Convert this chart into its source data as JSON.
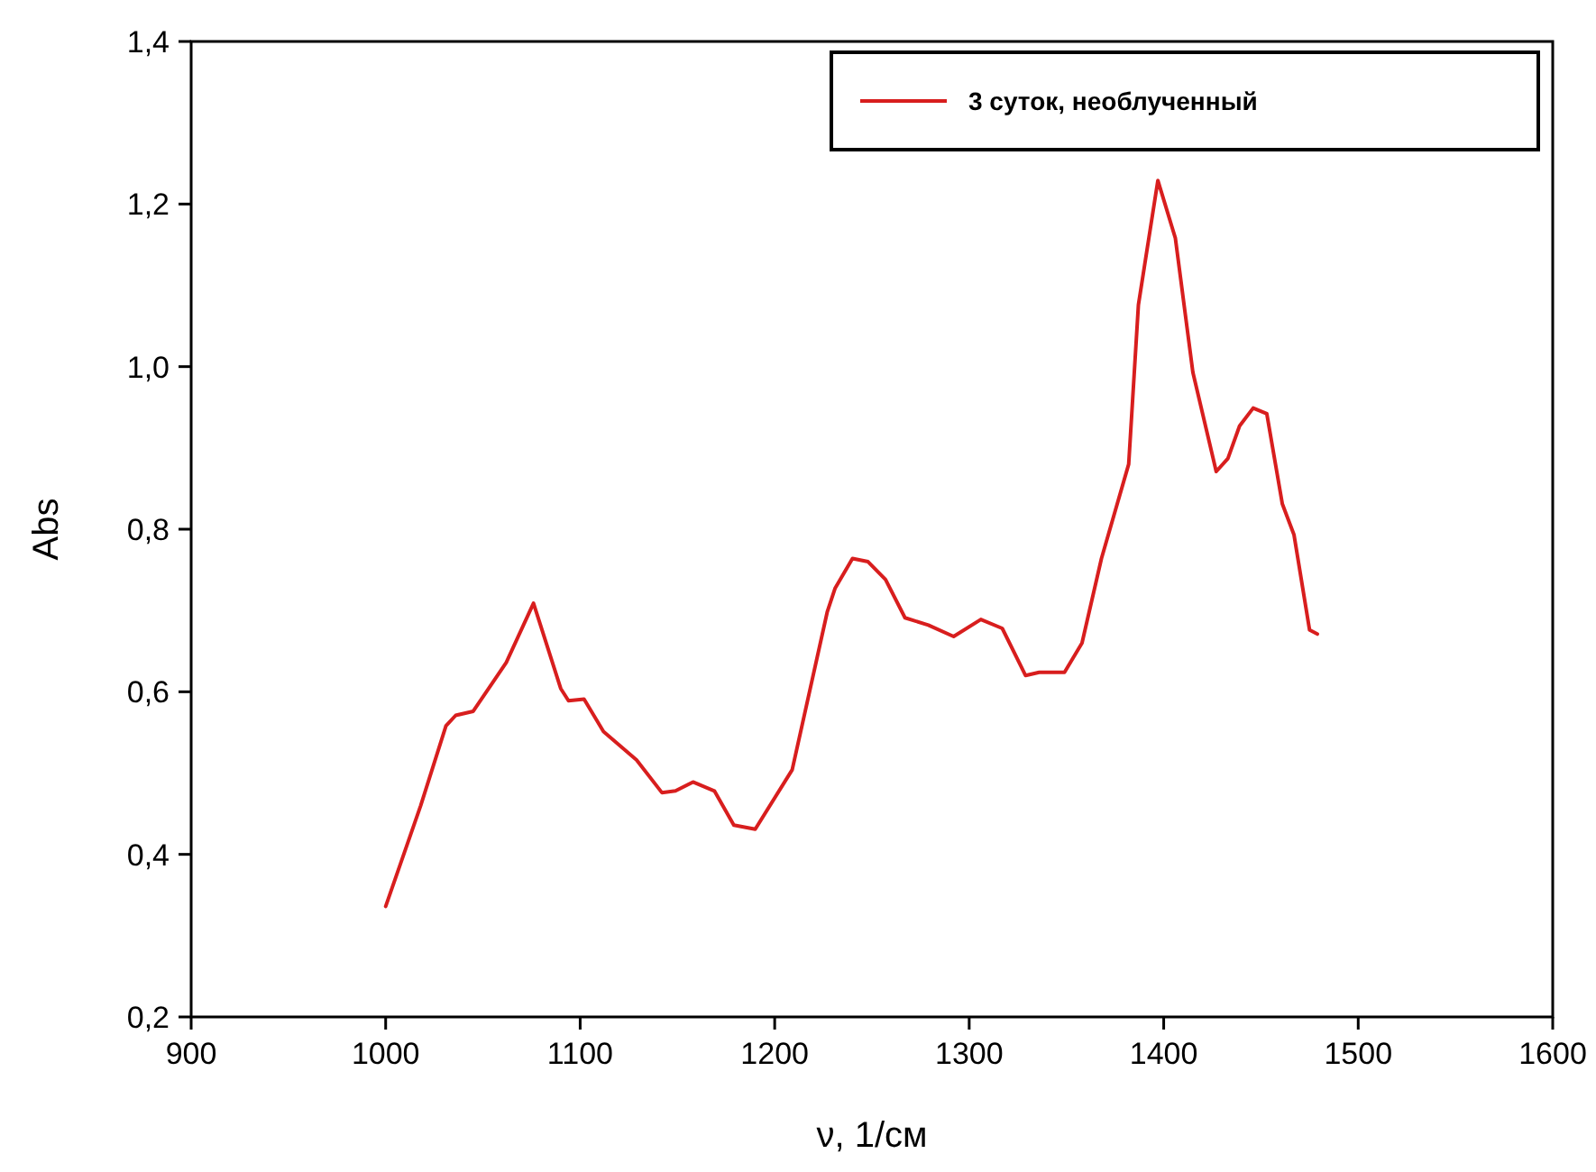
{
  "chart_data": {
    "type": "line",
    "xlabel": "ν, 1/см",
    "ylabel": "Abs",
    "xlim": [
      900,
      1600
    ],
    "xticks": [
      900,
      1000,
      1100,
      1200,
      1300,
      1400,
      1500,
      1600
    ],
    "ylim": [
      0.2,
      1.4
    ],
    "yticks": [
      {
        "value": 0.2,
        "label": "0,2"
      },
      {
        "value": 0.4,
        "label": "0,4"
      },
      {
        "value": 0.6,
        "label": "0,6"
      },
      {
        "value": 0.8,
        "label": "0,8"
      },
      {
        "value": 1.0,
        "label": "1,0"
      },
      {
        "value": 1.2,
        "label": "1,2"
      },
      {
        "value": 1.4,
        "label": "1,4"
      }
    ],
    "legend": "top right",
    "grid": false,
    "marker": "none",
    "line_style": "solid",
    "series": [
      {
        "name": "3 суток, необлученный",
        "color": "#d81e1e",
        "x": [
          1000,
          1018,
          1031,
          1036,
          1045,
          1062,
          1076,
          1090,
          1094,
          1102,
          1112,
          1129,
          1142,
          1149,
          1158,
          1169,
          1179,
          1190,
          1209,
          1227,
          1231,
          1240,
          1248,
          1257,
          1267,
          1279,
          1292,
          1306,
          1317,
          1329,
          1336,
          1349,
          1358,
          1368,
          1382,
          1387,
          1397,
          1406,
          1415,
          1427,
          1433,
          1439,
          1446,
          1453,
          1461,
          1467,
          1475,
          1479
        ],
        "values": [
          0.336,
          0.46,
          0.558,
          0.571,
          0.576,
          0.636,
          0.709,
          0.604,
          0.589,
          0.591,
          0.551,
          0.516,
          0.476,
          0.478,
          0.489,
          0.478,
          0.436,
          0.431,
          0.504,
          0.698,
          0.727,
          0.764,
          0.76,
          0.738,
          0.691,
          0.682,
          0.668,
          0.689,
          0.678,
          0.62,
          0.624,
          0.624,
          0.66,
          0.764,
          0.88,
          1.076,
          1.229,
          1.158,
          0.993,
          0.871,
          0.887,
          0.927,
          0.949,
          0.942,
          0.831,
          0.793,
          0.676,
          0.671
        ]
      }
    ]
  }
}
